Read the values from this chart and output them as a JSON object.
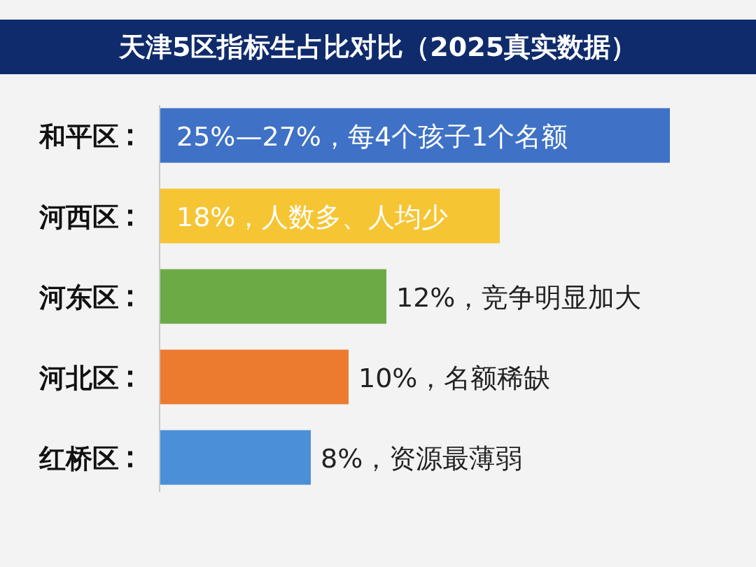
{
  "chart_data": {
    "type": "bar",
    "orientation": "horizontal",
    "title": "天津5区指标生占比对比（2025真实数据）",
    "categories": [
      "和平区",
      "河西区",
      "河东区",
      "河北区",
      "红桥区"
    ],
    "values": [
      27,
      18,
      12,
      10,
      8
    ],
    "colors": [
      "#3f72c6",
      "#f6c533",
      "#6caa46",
      "#ec7b30",
      "#4a8fd8"
    ],
    "value_labels": [
      "25%—27%，每4个孩子1个名额",
      "18%，人数多、人均少",
      "12%，竞争明显加大",
      "10%，名额稀缺",
      "8%，资源最薄弱"
    ]
  }
}
